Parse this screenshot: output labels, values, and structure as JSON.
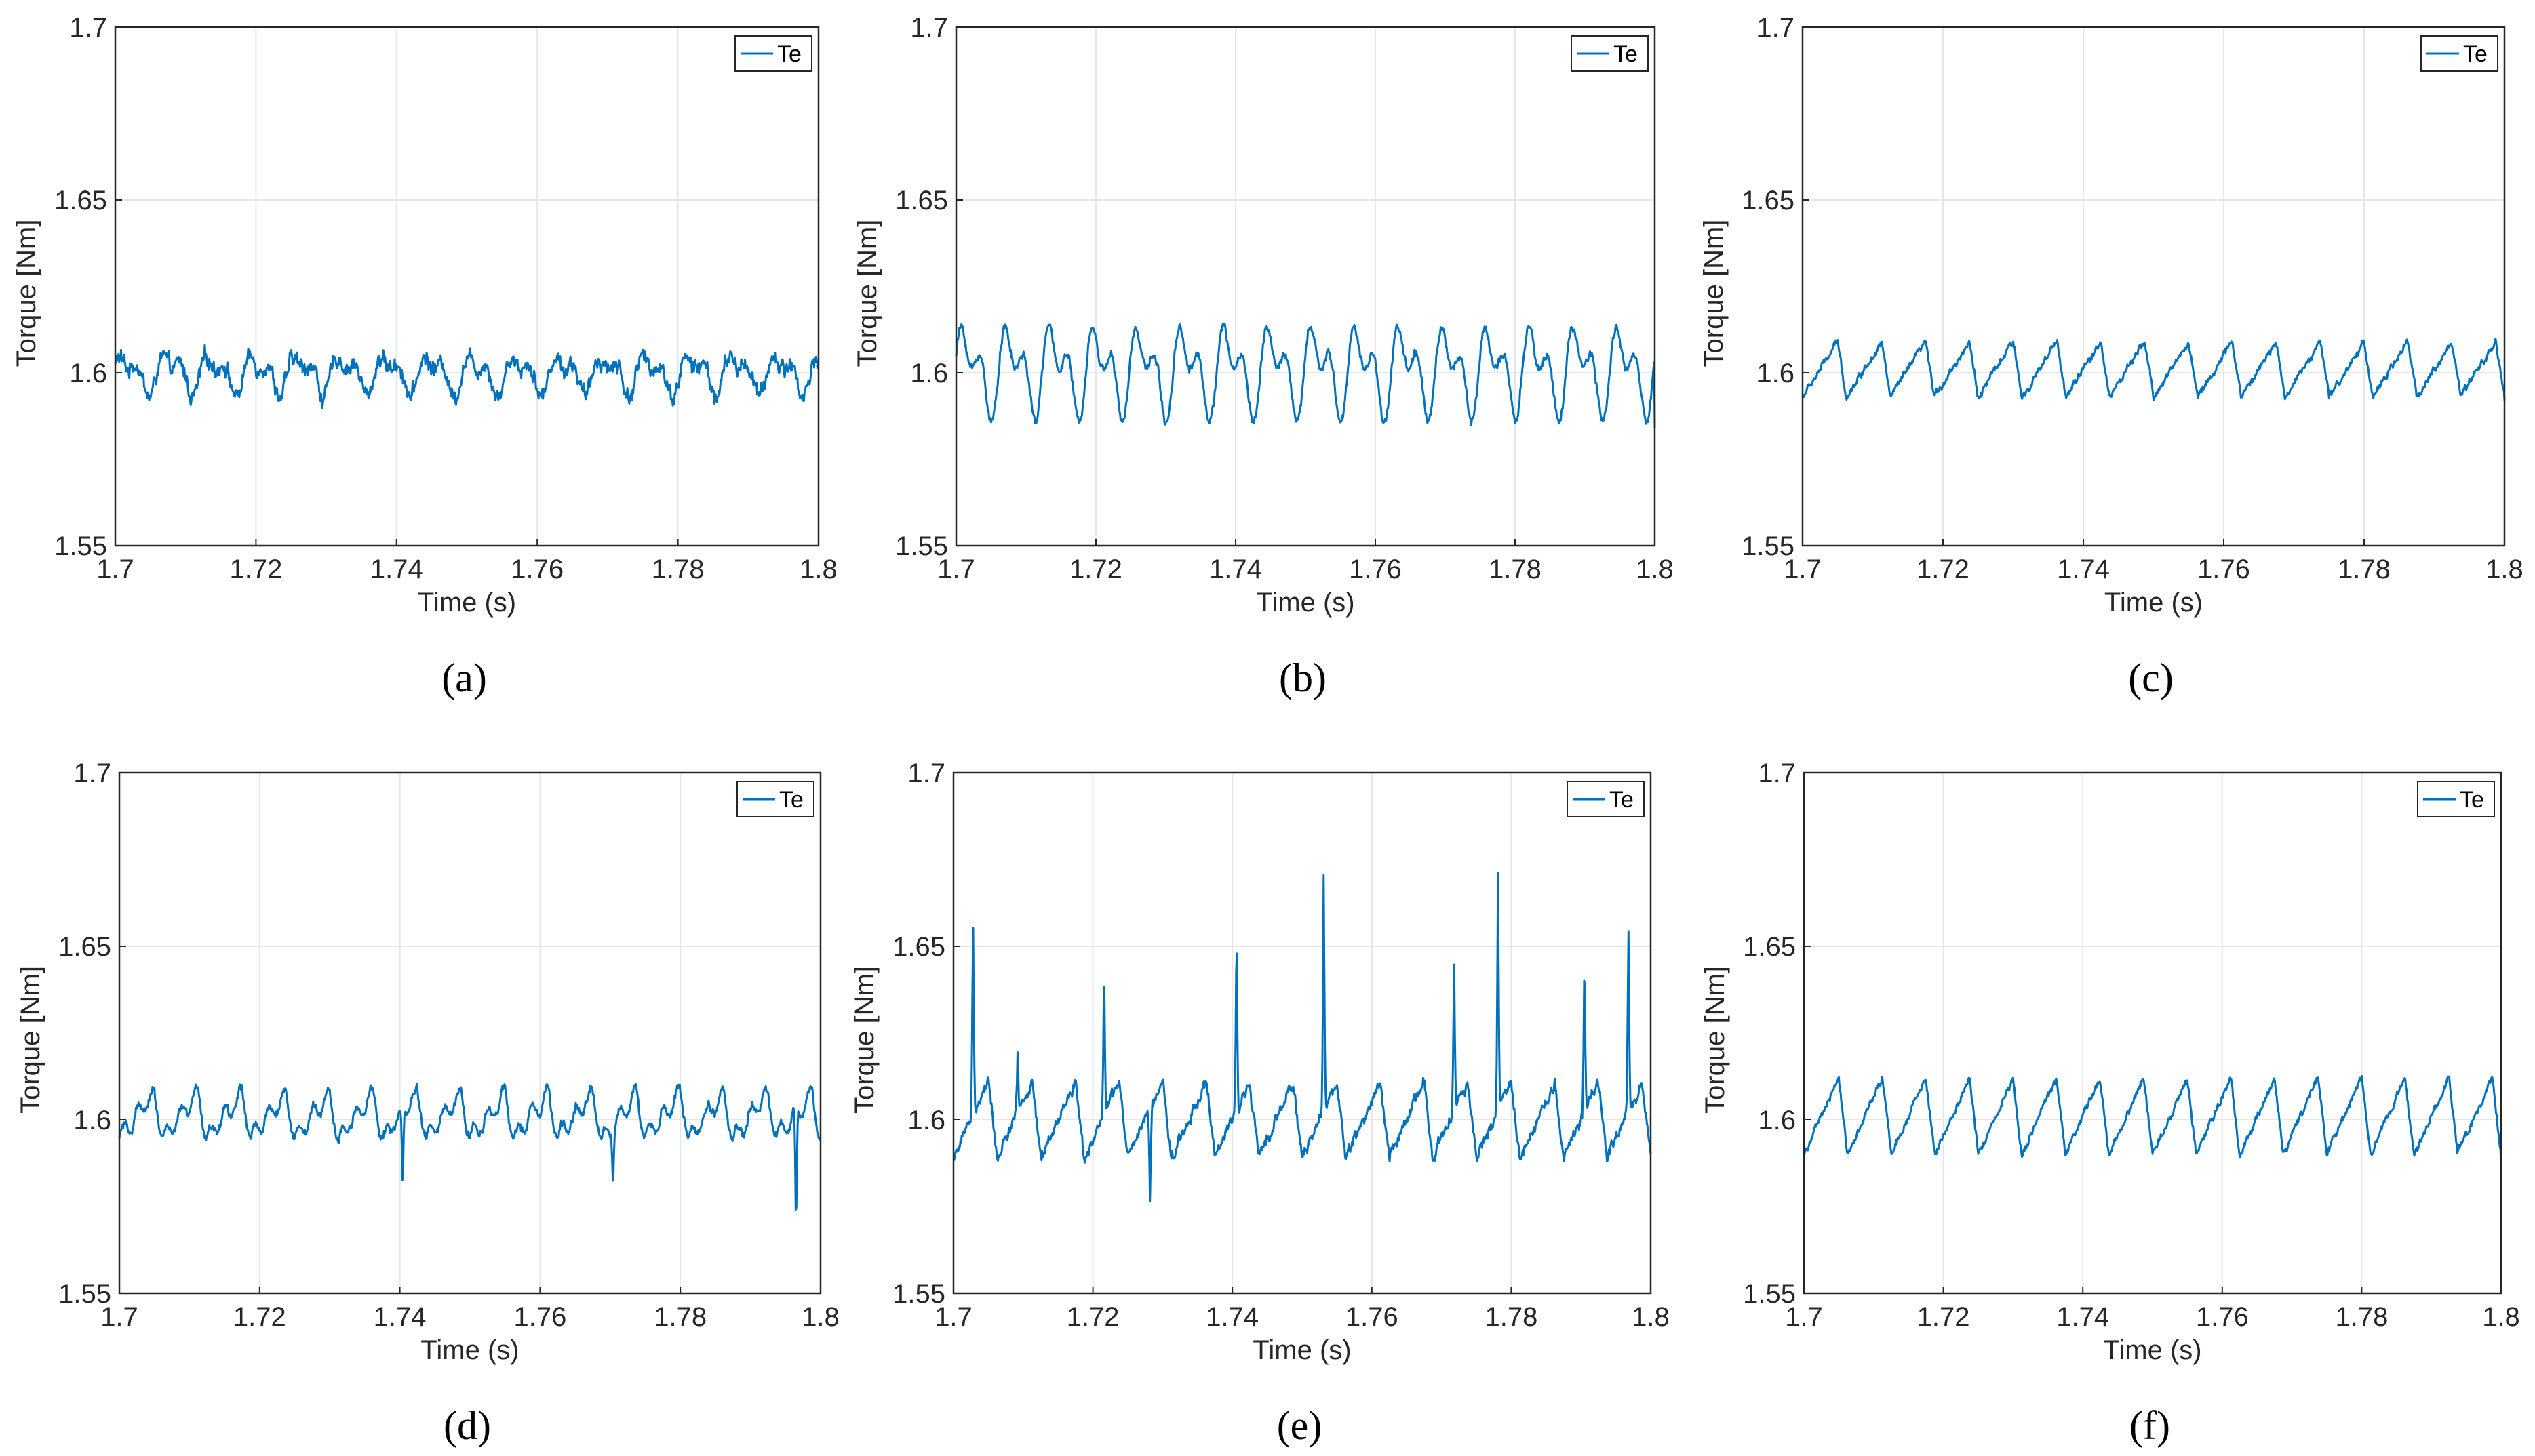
{
  "line_color": "#0072bd",
  "chart_data": [
    {
      "type": "line",
      "panel_label": "(a)",
      "xlabel": "Time (s)",
      "ylabel": "Torque [Nm]",
      "xlim": [
        1.7,
        1.8
      ],
      "ylim": [
        1.55,
        1.7
      ],
      "xticks": [
        "1.7",
        "1.72",
        "1.74",
        "1.76",
        "1.78",
        "1.8"
      ],
      "yticks": [
        "1.55",
        "1.6",
        "1.65",
        "1.7"
      ],
      "grid": true,
      "legend": "top-right",
      "series": [
        {
          "name": "Te",
          "mean": 1.6,
          "ripple_amplitude": 0.007,
          "ripple_period": 0.0062,
          "noise": 0.003,
          "waveform": "noisy",
          "spikes": [],
          "x_end": 1.7997,
          "y_end": 1.602
        }
      ]
    },
    {
      "type": "line",
      "panel_label": "(b)",
      "xlabel": "Time (s)",
      "ylabel": "Torque [Nm]",
      "xlim": [
        1.7,
        1.8
      ],
      "ylim": [
        1.55,
        1.7
      ],
      "xticks": [
        "1.7",
        "1.72",
        "1.74",
        "1.76",
        "1.78",
        "1.8"
      ],
      "yticks": [
        "1.55",
        "1.6",
        "1.65",
        "1.7"
      ],
      "grid": true,
      "legend": "top-right",
      "series": [
        {
          "name": "Te",
          "mean": 1.601,
          "ripple_amplitude": 0.016,
          "ripple_period": 0.00625,
          "noise": 0.0015,
          "waveform": "peaky",
          "spikes": [],
          "x_end": 1.8,
          "y_end": 1.584
        }
      ]
    },
    {
      "type": "line",
      "panel_label": "(c)",
      "xlabel": "Time (s)",
      "ylabel": "Torque [Nm]",
      "xlim": [
        1.7,
        1.8
      ],
      "ylim": [
        1.55,
        1.7
      ],
      "xticks": [
        "1.7",
        "1.72",
        "1.74",
        "1.76",
        "1.78",
        "1.8"
      ],
      "yticks": [
        "1.55",
        "1.6",
        "1.65",
        "1.7"
      ],
      "grid": true,
      "legend": "top-right",
      "series": [
        {
          "name": "Te",
          "mean": 1.601,
          "ripple_amplitude": 0.008,
          "ripple_period": 0.00625,
          "noise": 0.0012,
          "waveform": "saw",
          "spikes": [],
          "x_end": 1.8,
          "y_end": 1.592
        }
      ]
    },
    {
      "type": "line",
      "panel_label": "(d)",
      "xlabel": "Time (s)",
      "ylabel": "Torque [Nm]",
      "xlim": [
        1.7,
        1.8
      ],
      "ylim": [
        1.55,
        1.7
      ],
      "xticks": [
        "1.7",
        "1.72",
        "1.74",
        "1.76",
        "1.78",
        "1.8"
      ],
      "yticks": [
        "1.55",
        "1.6",
        "1.65",
        "1.7"
      ],
      "grid": true,
      "legend": "top-right",
      "series": [
        {
          "name": "Te",
          "mean": 1.601,
          "ripple_amplitude": 0.008,
          "ripple_period": 0.00625,
          "noise": 0.0015,
          "waveform": "dip",
          "spikes": [
            {
              "x": 1.7404,
              "y": 1.576
            },
            {
              "x": 1.7704,
              "y": 1.582
            },
            {
              "x": 1.7965,
              "y": 1.563
            }
          ],
          "x_end": 1.8,
          "y_end": 1.594
        }
      ]
    },
    {
      "type": "line",
      "panel_label": "(e)",
      "xlabel": "Time (s)",
      "ylabel": "Torque [Nm]",
      "xlim": [
        1.7,
        1.8
      ],
      "ylim": [
        1.55,
        1.7
      ],
      "xticks": [
        "1.7",
        "1.72",
        "1.74",
        "1.76",
        "1.78",
        "1.8"
      ],
      "yticks": [
        "1.55",
        "1.6",
        "1.65",
        "1.7"
      ],
      "grid": true,
      "legend": "top-right",
      "series": [
        {
          "name": "Te",
          "mean": 1.6,
          "ripple_amplitude": 0.011,
          "ripple_period": 0.00625,
          "noise": 0.002,
          "waveform": "saw",
          "spikes": [
            {
              "x": 1.7028,
              "y": 1.66
            },
            {
              "x": 1.7092,
              "y": 1.62
            },
            {
              "x": 1.7216,
              "y": 1.645
            },
            {
              "x": 1.7282,
              "y": 1.571
            },
            {
              "x": 1.7406,
              "y": 1.656
            },
            {
              "x": 1.7531,
              "y": 1.671
            },
            {
              "x": 1.7718,
              "y": 1.647
            },
            {
              "x": 1.7781,
              "y": 1.672
            },
            {
              "x": 1.7905,
              "y": 1.651
            },
            {
              "x": 1.7968,
              "y": 1.657
            }
          ],
          "x_end": 1.8,
          "y_end": 1.59
        }
      ]
    },
    {
      "type": "line",
      "panel_label": "(f)",
      "xlabel": "Time (s)",
      "ylabel": "Torque [Nm]",
      "xlim": [
        1.7,
        1.8
      ],
      "ylim": [
        1.55,
        1.7
      ],
      "xticks": [
        "1.7",
        "1.72",
        "1.74",
        "1.76",
        "1.78",
        "1.8"
      ],
      "yticks": [
        "1.55",
        "1.6",
        "1.65",
        "1.7"
      ],
      "grid": true,
      "legend": "top-right",
      "series": [
        {
          "name": "Te",
          "mean": 1.601,
          "ripple_amplitude": 0.011,
          "ripple_period": 0.00625,
          "noise": 0.0012,
          "waveform": "saw",
          "spikes": [],
          "x_end": 1.8,
          "y_end": 1.586
        }
      ]
    }
  ]
}
